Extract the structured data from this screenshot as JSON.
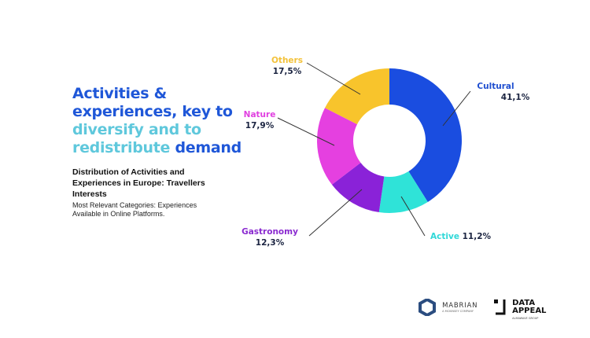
{
  "headline": {
    "part1": "Activities & experiences, key to ",
    "part2": "diversify and to redistribute",
    "part3": " demand"
  },
  "subtitle": "Distribution of Activities and Experiences in Europe: Travellers Interests",
  "description": "Most Relevant Categories: Experiences Available in Online Platforms.",
  "chart_data": {
    "type": "pie",
    "donut": true,
    "categories": [
      "Cultural",
      "Active",
      "Gastronomy",
      "Nature",
      "Others"
    ],
    "values": [
      41.1,
      11.2,
      12.3,
      17.9,
      17.5
    ],
    "value_labels": [
      "41,1%",
      "11,2%",
      "12,3%",
      "17,9%",
      "17,5%"
    ],
    "colors": [
      "#1a4de0",
      "#2fe3d8",
      "#8a22d8",
      "#e540e0",
      "#f8c42c"
    ],
    "label_colors": [
      "#1f4fd0",
      "#2fd8d8",
      "#8a2ad0",
      "#e040e0",
      "#f3c23a"
    ]
  },
  "logos": {
    "mabrian": "MABRIAN",
    "mabrian_sub": "A MCKINSEY COMPANY",
    "dataappeal": "DATA APPEAL",
    "dataappeal_sub": "ALMAWAVE GROUP"
  }
}
